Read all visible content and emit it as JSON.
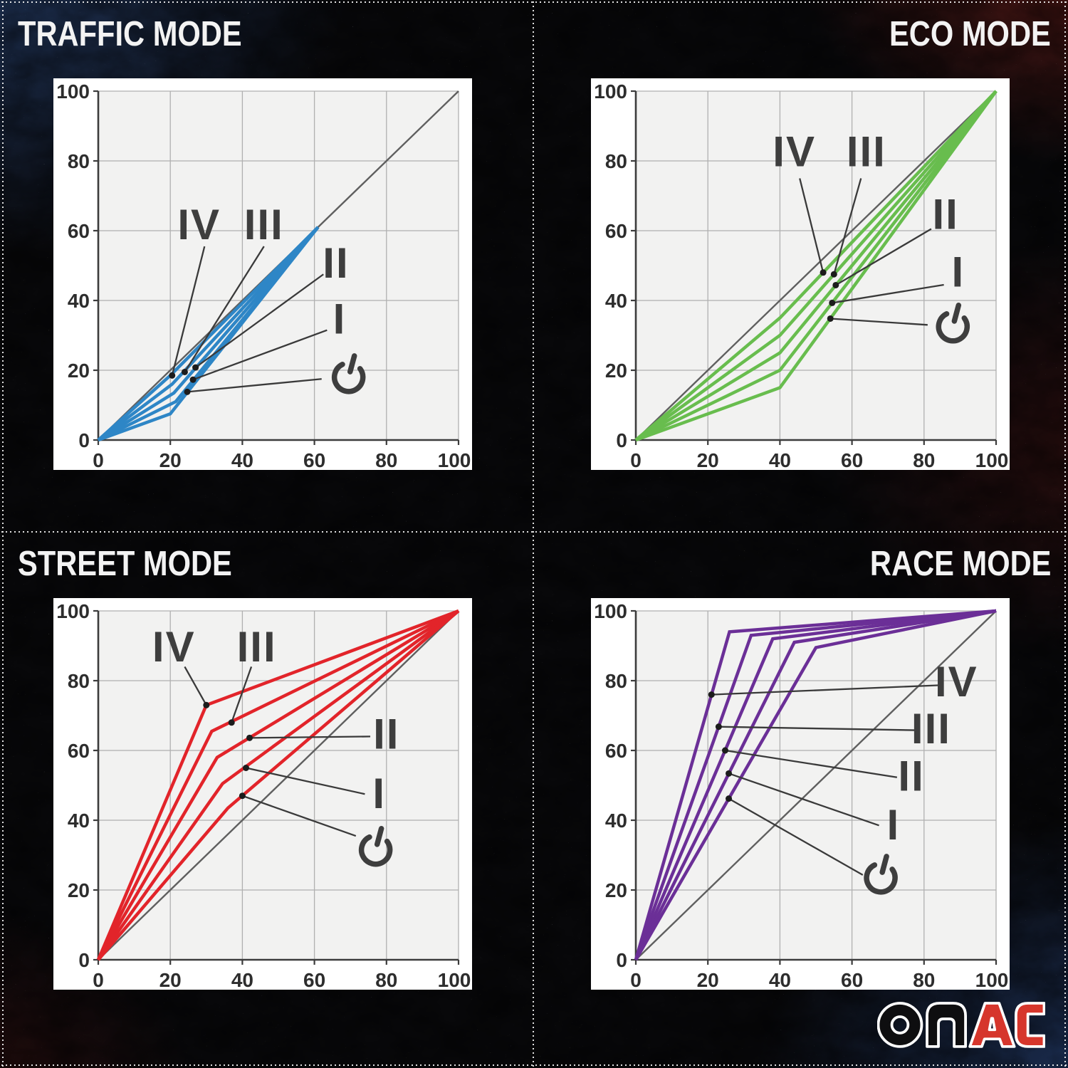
{
  "theme": {
    "panel_bg": "#ffffff",
    "plot_bg": "#f2f2f1",
    "grid": "#b0b0b0",
    "axis": "#3c3c3c",
    "tick_text": "#2d2d2d",
    "diagonal": "#5f5f5f",
    "label_text": "#3e3e3e",
    "leader": "#3a3a3a",
    "dot": "#1c1c1c",
    "title_text": "#f3f3f3",
    "separator_dots": "#f2f2f2",
    "bg_black": "#08080a",
    "bg_blue_glow": "#26406e",
    "bg_red_glow": "#601a16"
  },
  "logo": {
    "text": "OMAC",
    "part1": "om",
    "part2": "AC",
    "part1_color": "#0e0e10",
    "part2_color": "#d6362c",
    "outline_color": "#ffffff"
  },
  "chart_data": [
    {
      "id": "traffic",
      "type": "line",
      "title": "TRAFFIC MODE",
      "title_align": "left",
      "color": "#2e86c6",
      "xlim": [
        0,
        100
      ],
      "ylim": [
        0,
        100
      ],
      "xticks": [
        0,
        20,
        40,
        60,
        80,
        100
      ],
      "yticks": [
        0,
        20,
        40,
        60,
        80,
        100
      ],
      "grid": true,
      "diagonal": [
        [
          0,
          0
        ],
        [
          100,
          100
        ]
      ],
      "series": [
        {
          "name": "IV",
          "points": [
            [
              0,
              0
            ],
            [
              20,
              18.5
            ],
            [
              61,
              61
            ]
          ]
        },
        {
          "name": "III",
          "points": [
            [
              0,
              0
            ],
            [
              20.5,
              16
            ],
            [
              61,
              61
            ]
          ]
        },
        {
          "name": "II",
          "points": [
            [
              0,
              0
            ],
            [
              21,
              13.5
            ],
            [
              61,
              61
            ]
          ]
        },
        {
          "name": "I",
          "points": [
            [
              0,
              0
            ],
            [
              21.5,
              11
            ],
            [
              61,
              61
            ]
          ]
        },
        {
          "name": "power",
          "points": [
            [
              0,
              0
            ],
            [
              20,
              7.5
            ],
            [
              61,
              61
            ]
          ]
        }
      ],
      "callouts": [
        {
          "label": "IV",
          "kind": "text",
          "pos": [
            28,
            62
          ],
          "leader_end": [
            29.5,
            55.5
          ],
          "dot": [
            20.5,
            18.5
          ]
        },
        {
          "label": "III",
          "kind": "text",
          "pos": [
            46,
            62
          ],
          "leader_end": [
            46,
            55.5
          ],
          "dot": [
            24,
            19.5
          ]
        },
        {
          "label": "II",
          "kind": "text",
          "pos": [
            66,
            51
          ],
          "leader_end": [
            62.5,
            47.5
          ],
          "dot": [
            27,
            20.8
          ]
        },
        {
          "label": "I",
          "kind": "text",
          "pos": [
            67,
            35
          ],
          "leader_end": [
            63.5,
            31.5
          ],
          "dot": [
            26.3,
            17.3
          ]
        },
        {
          "label": "power",
          "kind": "power-icon",
          "pos": [
            69.5,
            18
          ],
          "leader_end": [
            62,
            17.5
          ],
          "dot": [
            24.7,
            13.8
          ]
        }
      ]
    },
    {
      "id": "eco",
      "type": "line",
      "title": "ECO MODE",
      "title_align": "right",
      "color": "#68bd4e",
      "xlim": [
        0,
        100
      ],
      "ylim": [
        0,
        100
      ],
      "xticks": [
        0,
        20,
        40,
        60,
        80,
        100
      ],
      "yticks": [
        0,
        20,
        40,
        60,
        80,
        100
      ],
      "grid": true,
      "diagonal": [
        [
          0,
          0
        ],
        [
          100,
          100
        ]
      ],
      "series": [
        {
          "name": "IV",
          "points": [
            [
              0,
              0
            ],
            [
              40,
              35
            ],
            [
              100,
              100
            ]
          ]
        },
        {
          "name": "III",
          "points": [
            [
              0,
              0
            ],
            [
              40,
              30
            ],
            [
              100,
              100
            ]
          ]
        },
        {
          "name": "II",
          "points": [
            [
              0,
              0
            ],
            [
              40,
              25
            ],
            [
              100,
              100
            ]
          ]
        },
        {
          "name": "I",
          "points": [
            [
              0,
              0
            ],
            [
              40,
              20
            ],
            [
              100,
              100
            ]
          ]
        },
        {
          "name": "power",
          "points": [
            [
              0,
              0
            ],
            [
              40,
              15
            ],
            [
              100,
              100
            ]
          ]
        }
      ],
      "callouts": [
        {
          "label": "IV",
          "kind": "text",
          "pos": [
            44,
            83
          ],
          "leader_end": [
            45.5,
            75
          ],
          "dot": [
            52,
            48
          ]
        },
        {
          "label": "III",
          "kind": "text",
          "pos": [
            64,
            83
          ],
          "leader_end": [
            62.5,
            75
          ],
          "dot": [
            55,
            47.5
          ]
        },
        {
          "label": "II",
          "kind": "text",
          "pos": [
            86,
            65
          ],
          "leader_end": [
            82,
            60.5
          ],
          "dot": [
            55.5,
            44.4
          ]
        },
        {
          "label": "I",
          "kind": "text",
          "pos": [
            89.5,
            48.5
          ],
          "leader_end": [
            85.5,
            44.5
          ],
          "dot": [
            54.5,
            39.3
          ]
        },
        {
          "label": "power",
          "kind": "power-icon",
          "pos": [
            88,
            32.5
          ],
          "leader_end": [
            81,
            33
          ],
          "dot": [
            54,
            34.8
          ]
        }
      ]
    },
    {
      "id": "street",
      "type": "line",
      "title": "STREET MODE",
      "title_align": "left",
      "color": "#e2242a",
      "xlim": [
        0,
        100
      ],
      "ylim": [
        0,
        100
      ],
      "xticks": [
        0,
        20,
        40,
        60,
        80,
        100
      ],
      "yticks": [
        0,
        20,
        40,
        60,
        80,
        100
      ],
      "grid": true,
      "diagonal": [
        [
          0,
          0
        ],
        [
          100,
          100
        ]
      ],
      "series": [
        {
          "name": "IV",
          "points": [
            [
              0,
              0
            ],
            [
              30,
              73
            ],
            [
              100,
              100
            ]
          ]
        },
        {
          "name": "III",
          "points": [
            [
              0,
              0
            ],
            [
              31.5,
              65.5
            ],
            [
              100,
              100
            ]
          ]
        },
        {
          "name": "II",
          "points": [
            [
              0,
              0
            ],
            [
              33,
              58
            ],
            [
              100,
              100
            ]
          ]
        },
        {
          "name": "I",
          "points": [
            [
              0,
              0
            ],
            [
              34.5,
              50.5
            ],
            [
              100,
              100
            ]
          ]
        },
        {
          "name": "power",
          "points": [
            [
              0,
              0
            ],
            [
              36,
              43.5
            ],
            [
              100,
              100
            ]
          ]
        }
      ],
      "callouts": [
        {
          "label": "IV",
          "kind": "text",
          "pos": [
            21,
            90
          ],
          "leader_end": [
            24,
            84
          ],
          "dot": [
            30,
            73
          ]
        },
        {
          "label": "III",
          "kind": "text",
          "pos": [
            44,
            90
          ],
          "leader_end": [
            42.5,
            84
          ],
          "dot": [
            37,
            68
          ]
        },
        {
          "label": "II",
          "kind": "text",
          "pos": [
            80,
            65
          ],
          "leader_end": [
            75.5,
            64
          ],
          "dot": [
            42,
            63.6
          ]
        },
        {
          "label": "I",
          "kind": "text",
          "pos": [
            78,
            48
          ],
          "leader_end": [
            74,
            47.5
          ],
          "dot": [
            41,
            55
          ]
        },
        {
          "label": "power",
          "kind": "power-icon",
          "pos": [
            77,
            31.5
          ],
          "leader_end": [
            71.5,
            35.5
          ],
          "dot": [
            40,
            47
          ]
        }
      ]
    },
    {
      "id": "race",
      "type": "line",
      "title": "RACE MODE",
      "title_align": "right",
      "color": "#6b2f97",
      "xlim": [
        0,
        100
      ],
      "ylim": [
        0,
        100
      ],
      "xticks": [
        0,
        20,
        40,
        60,
        80,
        100
      ],
      "yticks": [
        0,
        20,
        40,
        60,
        80,
        100
      ],
      "grid": true,
      "diagonal": [
        [
          0,
          0
        ],
        [
          100,
          100
        ]
      ],
      "series": [
        {
          "name": "IV",
          "points": [
            [
              0,
              0
            ],
            [
              26,
              94
            ],
            [
              100,
              100
            ]
          ]
        },
        {
          "name": "III",
          "points": [
            [
              0,
              0
            ],
            [
              32,
              93
            ],
            [
              100,
              100
            ]
          ]
        },
        {
          "name": "II",
          "points": [
            [
              0,
              0
            ],
            [
              38,
              92
            ],
            [
              100,
              100
            ]
          ]
        },
        {
          "name": "I",
          "points": [
            [
              0,
              0
            ],
            [
              44,
              91
            ],
            [
              100,
              100
            ]
          ]
        },
        {
          "name": "power",
          "points": [
            [
              0,
              0
            ],
            [
              50,
              89.5
            ],
            [
              100,
              100
            ]
          ]
        }
      ],
      "callouts": [
        {
          "label": "IV",
          "kind": "text",
          "pos": [
            89,
            80
          ],
          "leader_end": [
            84.5,
            78.7
          ],
          "dot": [
            21,
            76
          ]
        },
        {
          "label": "III",
          "kind": "text",
          "pos": [
            82,
            66.5
          ],
          "leader_end": [
            77.5,
            65.8
          ],
          "dot": [
            23,
            66.8
          ]
        },
        {
          "label": "II",
          "kind": "text",
          "pos": [
            76.5,
            53
          ],
          "leader_end": [
            72.5,
            52.3
          ],
          "dot": [
            24.8,
            60
          ]
        },
        {
          "label": "I",
          "kind": "text",
          "pos": [
            71.5,
            39
          ],
          "leader_end": [
            67.5,
            38.5
          ],
          "dot": [
            25.8,
            53.4
          ]
        },
        {
          "label": "power",
          "kind": "power-icon",
          "pos": [
            68,
            23.5
          ],
          "leader_end": [
            63,
            24.3
          ],
          "dot": [
            25.8,
            46.2
          ]
        }
      ]
    }
  ]
}
